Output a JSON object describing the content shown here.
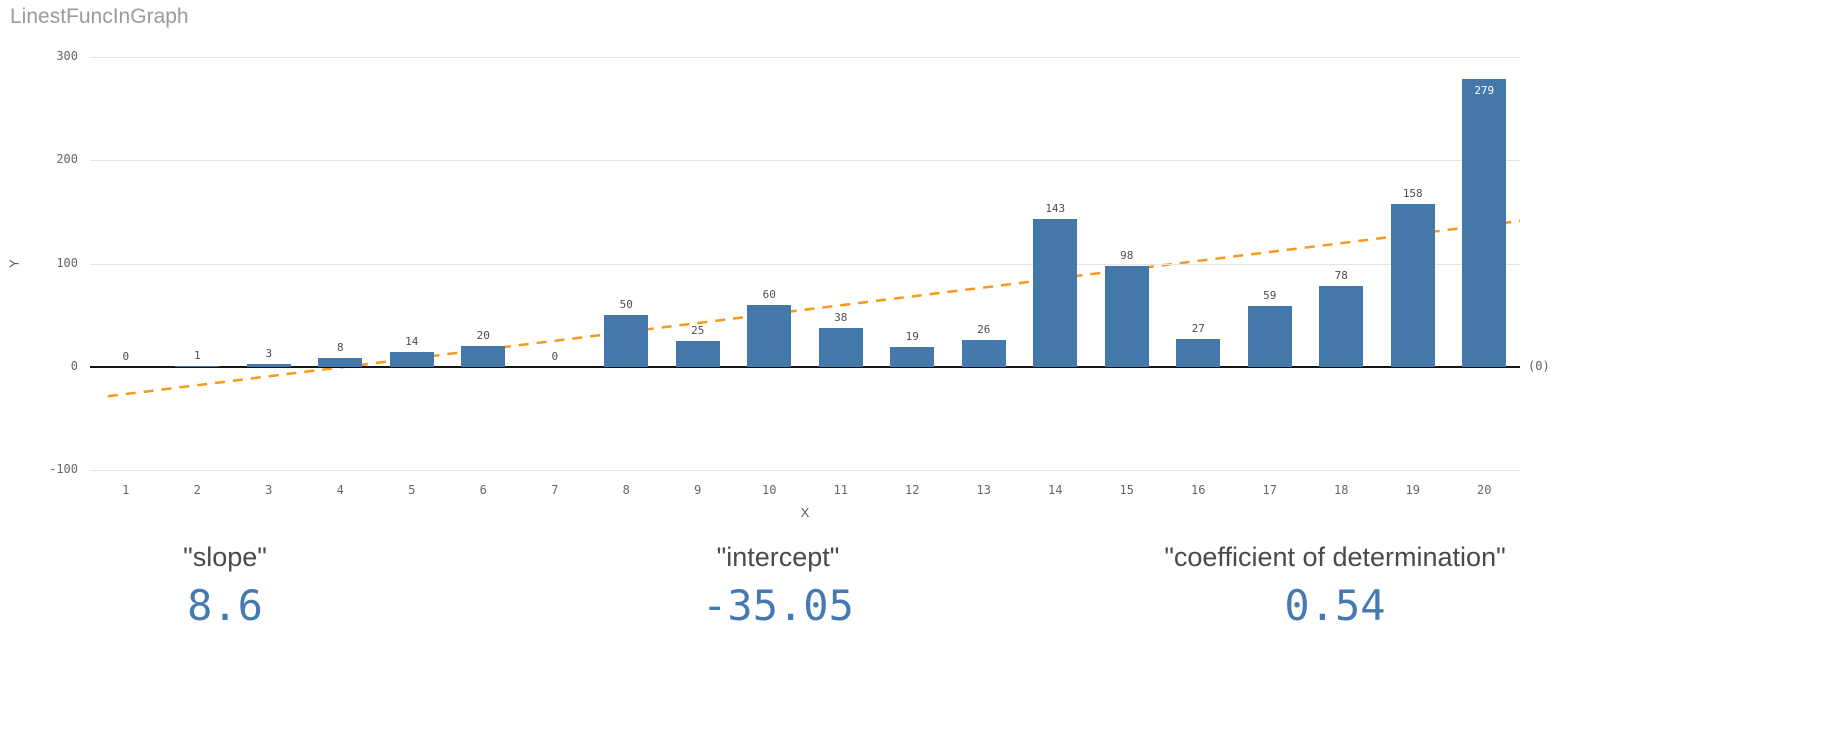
{
  "chart_data": {
    "type": "bar",
    "title": "LinestFuncInGraph",
    "xlabel": "X",
    "ylabel": "Y",
    "ylim": [
      -100,
      300
    ],
    "yticks": [
      300,
      200,
      100,
      0,
      -100
    ],
    "categories": [
      1,
      2,
      3,
      4,
      5,
      6,
      7,
      8,
      9,
      10,
      11,
      12,
      13,
      14,
      15,
      16,
      17,
      18,
      19,
      20
    ],
    "values": [
      0,
      1,
      3,
      8,
      14,
      20,
      0,
      50,
      25,
      60,
      38,
      19,
      26,
      143,
      98,
      27,
      59,
      78,
      158,
      279
    ],
    "bar_color": "#4477aa",
    "grid": true,
    "legend": "none",
    "zero_line_annotation": "(0)",
    "trend_line": {
      "type": "linear",
      "slope": 8.6,
      "intercept": -35.05,
      "style": "dashed",
      "color": "#f8981d"
    }
  },
  "kpis": [
    {
      "label": "\"slope\"",
      "value": "8.6"
    },
    {
      "label": "\"intercept\"",
      "value": "-35.05"
    },
    {
      "label": "\"coefficient of determination\"",
      "value": "0.54"
    }
  ],
  "colors": {
    "bar": "#4477aa",
    "trend": "#f8981d",
    "kpi_value": "#4579b2",
    "title": "#9a9a9a"
  }
}
